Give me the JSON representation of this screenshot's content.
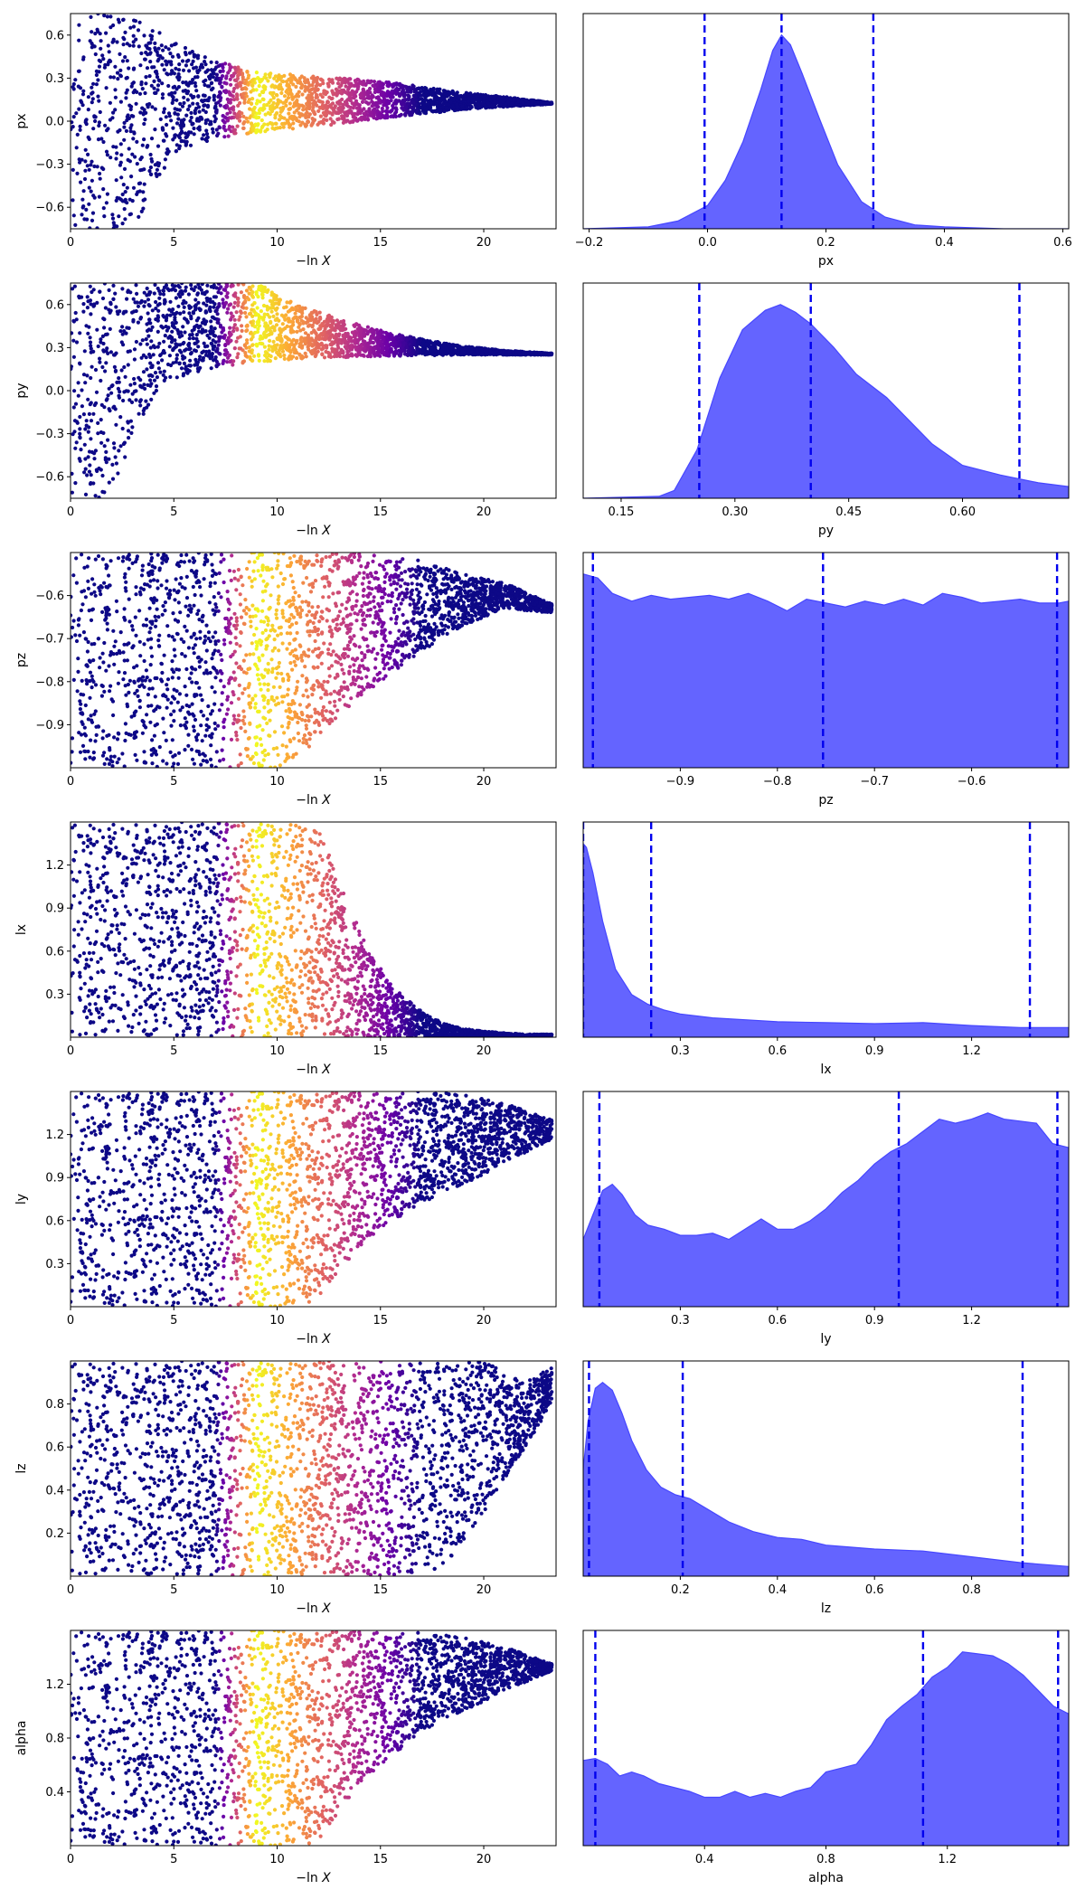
{
  "colors": {
    "scatter_colormap": [
      "#0d0887",
      "#6a00a8",
      "#b12a90",
      "#e16462",
      "#fca636",
      "#f0f921"
    ],
    "kde_fill": "#6464ff",
    "kde_line": "#4646ff",
    "quantile_line": "#0000ee"
  },
  "chart_data": [
    {
      "type": "scatter",
      "xlabel": "$-\\ln X$",
      "ylabel": "px",
      "xlim": [
        0,
        23.5
      ],
      "ylim": [
        -0.75,
        0.75
      ],
      "xticks": [
        0,
        5,
        10,
        15,
        20
      ],
      "yticks": [
        -0.6,
        -0.3,
        0.0,
        0.3,
        0.6
      ],
      "ytick_labels": [
        "−0.6",
        "−0.3",
        "0.0",
        "0.3",
        "0.6"
      ],
      "envelope": {
        "lnx": [
          0,
          3,
          5,
          7,
          9,
          11,
          13,
          15,
          17,
          19,
          21,
          23.3
        ],
        "lower": [
          -0.75,
          -0.75,
          -0.22,
          -0.12,
          -0.08,
          -0.05,
          -0.02,
          0.02,
          0.05,
          0.08,
          0.1,
          0.12
        ],
        "upper": [
          0.75,
          0.75,
          0.55,
          0.42,
          0.35,
          0.32,
          0.3,
          0.28,
          0.24,
          0.2,
          0.17,
          0.13
        ]
      }
    },
    {
      "type": "area",
      "xlabel": "px",
      "xlim": [
        -0.21,
        0.61
      ],
      "xticks": [
        -0.2,
        0.0,
        0.2,
        0.4,
        0.6
      ],
      "xtick_labels": [
        "−0.2",
        "0.0",
        "0.2",
        "0.4",
        "0.6"
      ],
      "x": [
        -0.21,
        -0.1,
        -0.05,
        0.0,
        0.03,
        0.06,
        0.09,
        0.11,
        0.125,
        0.14,
        0.16,
        0.19,
        0.22,
        0.26,
        0.3,
        0.35,
        0.4,
        0.5,
        0.61
      ],
      "density": [
        0.0,
        0.01,
        0.04,
        0.12,
        0.25,
        0.45,
        0.72,
        0.92,
        1.0,
        0.95,
        0.8,
        0.56,
        0.33,
        0.14,
        0.06,
        0.02,
        0.01,
        0.0,
        0.0
      ],
      "quantiles": [
        -0.005,
        0.125,
        0.28
      ]
    },
    {
      "type": "scatter",
      "xlabel": "$-\\ln X$",
      "ylabel": "py",
      "xlim": [
        0,
        23.5
      ],
      "ylim": [
        -0.75,
        0.75
      ],
      "xticks": [
        0,
        5,
        10,
        15,
        20
      ],
      "yticks": [
        -0.6,
        -0.3,
        0.0,
        0.3,
        0.6
      ],
      "ytick_labels": [
        "−0.6",
        "−0.3",
        "0.0",
        "0.3",
        "0.6"
      ],
      "envelope": {
        "lnx": [
          0,
          2,
          3,
          4,
          5,
          7,
          9,
          11,
          13,
          15,
          17,
          19,
          21,
          23.3
        ],
        "lower": [
          -0.75,
          -0.75,
          -0.3,
          -0.05,
          0.08,
          0.16,
          0.2,
          0.22,
          0.23,
          0.24,
          0.245,
          0.25,
          0.25,
          0.25
        ],
        "upper": [
          0.75,
          0.75,
          0.75,
          0.75,
          0.75,
          0.75,
          0.75,
          0.6,
          0.5,
          0.42,
          0.36,
          0.31,
          0.28,
          0.26
        ]
      }
    },
    {
      "type": "area",
      "xlabel": "py",
      "xlim": [
        0.1,
        0.74
      ],
      "xticks": [
        0.15,
        0.3,
        0.45,
        0.6
      ],
      "xtick_labels": [
        "0.15",
        "0.30",
        "0.45",
        "0.60"
      ],
      "x": [
        0.1,
        0.2,
        0.22,
        0.25,
        0.28,
        0.31,
        0.34,
        0.36,
        0.38,
        0.4,
        0.43,
        0.46,
        0.5,
        0.53,
        0.56,
        0.6,
        0.65,
        0.7,
        0.74
      ],
      "density": [
        0.0,
        0.01,
        0.04,
        0.25,
        0.62,
        0.87,
        0.97,
        1.0,
        0.96,
        0.9,
        0.78,
        0.64,
        0.52,
        0.4,
        0.28,
        0.17,
        0.12,
        0.08,
        0.06
      ],
      "quantiles": [
        0.253,
        0.4,
        0.675
      ]
    },
    {
      "type": "scatter",
      "xlabel": "$-\\ln X$",
      "ylabel": "pz",
      "xlim": [
        0,
        23.5
      ],
      "ylim": [
        -1.0,
        -0.5
      ],
      "xticks": [
        0,
        5,
        10,
        15,
        20
      ],
      "yticks": [
        -0.9,
        -0.8,
        -0.7,
        -0.6
      ],
      "ytick_labels": [
        "−0.9",
        "−0.8",
        "−0.7",
        "−0.6"
      ],
      "envelope": {
        "lnx": [
          0,
          8,
          10,
          11,
          12,
          13,
          15,
          17,
          19,
          21,
          23.3
        ],
        "lower": [
          -1.0,
          -1.0,
          -1.0,
          -0.98,
          -0.93,
          -0.88,
          -0.8,
          -0.73,
          -0.67,
          -0.63,
          -0.64
        ],
        "upper": [
          -0.5,
          -0.5,
          -0.5,
          -0.5,
          -0.5,
          -0.5,
          -0.5,
          -0.52,
          -0.55,
          -0.57,
          -0.62
        ]
      }
    },
    {
      "type": "area",
      "xlabel": "pz",
      "xlim": [
        -1.0,
        -0.5
      ],
      "xticks": [
        -0.9,
        -0.8,
        -0.7,
        -0.6
      ],
      "xtick_labels": [
        "−0.9",
        "−0.8",
        "−0.7",
        "−0.6"
      ],
      "x": [
        -1.0,
        -0.985,
        -0.97,
        -0.95,
        -0.93,
        -0.91,
        -0.89,
        -0.87,
        -0.85,
        -0.83,
        -0.81,
        -0.79,
        -0.77,
        -0.75,
        -0.73,
        -0.71,
        -0.69,
        -0.67,
        -0.65,
        -0.63,
        -0.61,
        -0.59,
        -0.57,
        -0.55,
        -0.53,
        -0.51,
        -0.5
      ],
      "density": [
        1.0,
        0.98,
        0.9,
        0.86,
        0.89,
        0.87,
        0.88,
        0.89,
        0.87,
        0.9,
        0.86,
        0.81,
        0.87,
        0.85,
        0.83,
        0.86,
        0.84,
        0.87,
        0.84,
        0.9,
        0.88,
        0.85,
        0.86,
        0.87,
        0.85,
        0.85,
        0.86
      ],
      "quantiles": [
        -0.99,
        -0.753,
        -0.512
      ]
    },
    {
      "type": "scatter",
      "xlabel": "$-\\ln X$",
      "ylabel": "lx",
      "xlim": [
        0,
        23.5
      ],
      "ylim": [
        0.0,
        1.5
      ],
      "xticks": [
        0,
        5,
        10,
        15,
        20
      ],
      "yticks": [
        0.3,
        0.6,
        0.9,
        1.2
      ],
      "ytick_labels": [
        "0.3",
        "0.6",
        "0.9",
        "1.2"
      ],
      "envelope": {
        "lnx": [
          0,
          10,
          11,
          12,
          13,
          14,
          15,
          16,
          17,
          18,
          19,
          20,
          21,
          22,
          23.3
        ],
        "lower": [
          0.0,
          0.0,
          0.0,
          0.0,
          0.0,
          0.0,
          0.0,
          0.0,
          0.0,
          0.0,
          0.0,
          0.0,
          0.0,
          0.0,
          0.01
        ],
        "upper": [
          1.5,
          1.5,
          1.5,
          1.45,
          1.1,
          0.75,
          0.48,
          0.3,
          0.18,
          0.1,
          0.06,
          0.04,
          0.03,
          0.02,
          0.02
        ]
      }
    },
    {
      "type": "area",
      "xlabel": "lx",
      "xlim": [
        0.0,
        1.5
      ],
      "xticks": [
        0.3,
        0.6,
        0.9,
        1.2
      ],
      "xtick_labels": [
        "0.3",
        "0.6",
        "0.9",
        "1.2"
      ],
      "x": [
        0.0,
        0.01,
        0.03,
        0.06,
        0.1,
        0.15,
        0.2,
        0.25,
        0.3,
        0.4,
        0.5,
        0.6,
        0.75,
        0.9,
        1.05,
        1.2,
        1.35,
        1.5
      ],
      "density": [
        1.0,
        0.98,
        0.85,
        0.6,
        0.35,
        0.22,
        0.17,
        0.14,
        0.12,
        0.1,
        0.09,
        0.08,
        0.075,
        0.07,
        0.075,
        0.06,
        0.05,
        0.05
      ],
      "quantiles": [
        0.0,
        0.21,
        1.38
      ]
    },
    {
      "type": "scatter",
      "xlabel": "$-\\ln X$",
      "ylabel": "ly",
      "xlim": [
        0,
        23.5
      ],
      "ylim": [
        0.0,
        1.5
      ],
      "xticks": [
        0,
        5,
        10,
        15,
        20
      ],
      "yticks": [
        0.3,
        0.6,
        0.9,
        1.2
      ],
      "ytick_labels": [
        "0.3",
        "0.6",
        "0.9",
        "1.2"
      ],
      "envelope": {
        "lnx": [
          0,
          10,
          11,
          12,
          13,
          14,
          15,
          17,
          19,
          21,
          23.3
        ],
        "lower": [
          0.0,
          0.0,
          0.0,
          0.05,
          0.25,
          0.4,
          0.55,
          0.72,
          0.85,
          1.0,
          1.17
        ],
        "upper": [
          1.5,
          1.5,
          1.5,
          1.5,
          1.5,
          1.5,
          1.5,
          1.5,
          1.48,
          1.42,
          1.3
        ]
      }
    },
    {
      "type": "area",
      "xlabel": "ly",
      "xlim": [
        0.0,
        1.5
      ],
      "xticks": [
        0.3,
        0.6,
        0.9,
        1.2
      ],
      "xtick_labels": [
        "0.3",
        "0.6",
        "0.9",
        "1.2"
      ],
      "x": [
        0.0,
        0.03,
        0.06,
        0.09,
        0.12,
        0.16,
        0.2,
        0.25,
        0.3,
        0.35,
        0.4,
        0.45,
        0.5,
        0.55,
        0.6,
        0.65,
        0.7,
        0.75,
        0.8,
        0.85,
        0.9,
        0.95,
        1.0,
        1.05,
        1.1,
        1.15,
        1.2,
        1.25,
        1.3,
        1.35,
        1.4,
        1.45,
        1.5
      ],
      "density": [
        0.33,
        0.45,
        0.57,
        0.6,
        0.55,
        0.45,
        0.4,
        0.38,
        0.35,
        0.35,
        0.36,
        0.33,
        0.38,
        0.43,
        0.38,
        0.38,
        0.42,
        0.48,
        0.56,
        0.62,
        0.7,
        0.76,
        0.8,
        0.86,
        0.92,
        0.9,
        0.92,
        0.95,
        0.92,
        0.91,
        0.9,
        0.8,
        0.78
      ],
      "quantiles": [
        0.05,
        0.975,
        1.465
      ]
    },
    {
      "type": "scatter",
      "xlabel": "$-\\ln X$",
      "ylabel": "lz",
      "xlim": [
        0,
        23.5
      ],
      "ylim": [
        0.0,
        1.0
      ],
      "xticks": [
        0,
        5,
        10,
        15,
        20
      ],
      "yticks": [
        0.2,
        0.4,
        0.6,
        0.8
      ],
      "ytick_labels": [
        "0.2",
        "0.4",
        "0.6",
        "0.8"
      ],
      "envelope": {
        "lnx": [
          0,
          16,
          17,
          18,
          19,
          20,
          21,
          22,
          23.3
        ],
        "lower": [
          0.0,
          0.0,
          0.0,
          0.05,
          0.15,
          0.3,
          0.45,
          0.6,
          0.8
        ],
        "upper": [
          1.0,
          1.0,
          1.0,
          1.0,
          1.0,
          1.0,
          0.95,
          0.9,
          0.97
        ]
      }
    },
    {
      "type": "area",
      "xlabel": "lz",
      "xlim": [
        0.0,
        1.0
      ],
      "xticks": [
        0.2,
        0.4,
        0.6,
        0.8
      ],
      "xtick_labels": [
        "0.2",
        "0.4",
        "0.6",
        "0.8"
      ],
      "x": [
        0.0,
        0.01,
        0.025,
        0.04,
        0.06,
        0.08,
        0.1,
        0.13,
        0.16,
        0.19,
        0.22,
        0.26,
        0.3,
        0.35,
        0.4,
        0.45,
        0.5,
        0.55,
        0.6,
        0.7,
        0.8,
        0.9,
        1.0
      ],
      "density": [
        0.55,
        0.8,
        0.97,
        1.0,
        0.96,
        0.84,
        0.7,
        0.55,
        0.46,
        0.42,
        0.4,
        0.34,
        0.28,
        0.23,
        0.2,
        0.19,
        0.16,
        0.15,
        0.14,
        0.13,
        0.1,
        0.07,
        0.05
      ],
      "quantiles": [
        0.012,
        0.205,
        0.905
      ]
    },
    {
      "type": "scatter",
      "xlabel": "$-\\ln X$",
      "ylabel": "alpha",
      "xlim": [
        0,
        23.5
      ],
      "ylim": [
        0.0,
        1.6
      ],
      "xticks": [
        0,
        5,
        10,
        15,
        20
      ],
      "yticks": [
        0.4,
        0.8,
        1.2
      ],
      "ytick_labels": [
        "0.4",
        "0.8",
        "1.2"
      ],
      "envelope": {
        "lnx": [
          0,
          10,
          11,
          12,
          13,
          14,
          15,
          17,
          19,
          21,
          23.3
        ],
        "lower": [
          0.0,
          0.0,
          0.0,
          0.02,
          0.25,
          0.45,
          0.6,
          0.85,
          1.0,
          1.15,
          1.3
        ],
        "upper": [
          1.6,
          1.6,
          1.6,
          1.6,
          1.6,
          1.6,
          1.6,
          1.58,
          1.55,
          1.48,
          1.35
        ]
      }
    },
    {
      "type": "area",
      "xlabel": "alpha",
      "xlim": [
        0.0,
        1.6
      ],
      "xticks": [
        0.4,
        0.8,
        1.2
      ],
      "xtick_labels": [
        "0.4",
        "0.8",
        "1.2"
      ],
      "x": [
        0.0,
        0.04,
        0.08,
        0.12,
        0.16,
        0.2,
        0.25,
        0.3,
        0.35,
        0.4,
        0.45,
        0.5,
        0.55,
        0.6,
        0.65,
        0.7,
        0.75,
        0.8,
        0.85,
        0.9,
        0.95,
        1.0,
        1.05,
        1.1,
        1.15,
        1.2,
        1.25,
        1.3,
        1.35,
        1.4,
        1.45,
        1.5,
        1.55,
        1.6
      ],
      "density": [
        0.44,
        0.45,
        0.42,
        0.36,
        0.38,
        0.36,
        0.32,
        0.3,
        0.28,
        0.25,
        0.25,
        0.28,
        0.25,
        0.27,
        0.25,
        0.28,
        0.3,
        0.38,
        0.4,
        0.42,
        0.52,
        0.65,
        0.72,
        0.78,
        0.87,
        0.92,
        1.0,
        0.99,
        0.98,
        0.94,
        0.88,
        0.8,
        0.72,
        0.68
      ],
      "quantiles": [
        0.04,
        1.12,
        1.565
      ]
    }
  ]
}
